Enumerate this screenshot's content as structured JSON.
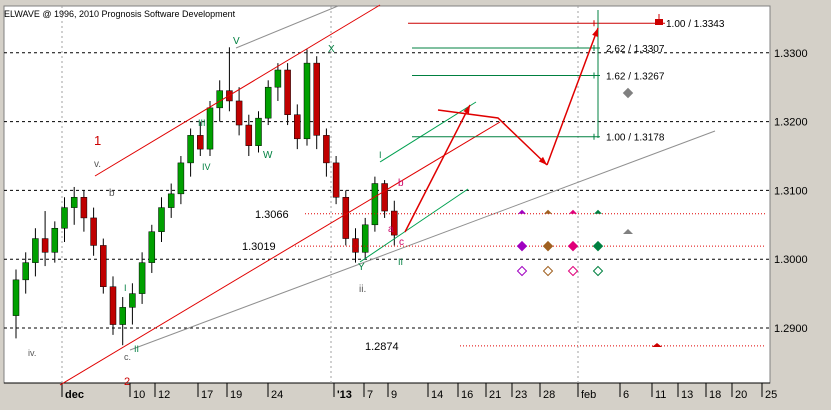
{
  "header": {
    "copyright": "ELWAVE @ 1996, 2010 Prognosis Software Development"
  },
  "chart_data": {
    "type": "candlestick",
    "instrument_hint": "EUR/USD (daily)",
    "ylim": [
      1.282,
      1.3385
    ],
    "y_ticks": [
      "1.2900",
      "1.3000",
      "1.3100",
      "1.3200",
      "1.3300"
    ],
    "x_tick_labels": [
      "dec",
      "10",
      "12",
      "17",
      "19",
      "24",
      "'13",
      "7",
      "9",
      "14",
      "16",
      "21",
      "23",
      "28",
      "feb",
      "6",
      "11",
      "13",
      "18",
      "20",
      "25"
    ],
    "grid": true,
    "candles": [
      [
        1.2918,
        1.2985,
        1.2885,
        1.297
      ],
      [
        1.297,
        1.301,
        1.295,
        1.2995
      ],
      [
        1.2995,
        1.3045,
        1.2975,
        1.303
      ],
      [
        1.303,
        1.307,
        1.299,
        1.301
      ],
      [
        1.301,
        1.3055,
        1.2995,
        1.3045
      ],
      [
        1.3045,
        1.309,
        1.3025,
        1.3075
      ],
      [
        1.3075,
        1.3105,
        1.305,
        1.309
      ],
      [
        1.309,
        1.31,
        1.304,
        1.306
      ],
      [
        1.306,
        1.3075,
        1.3005,
        1.302
      ],
      [
        1.302,
        1.303,
        1.295,
        1.296
      ],
      [
        1.296,
        1.2975,
        1.289,
        1.2905
      ],
      [
        1.2905,
        1.2945,
        1.2875,
        1.293
      ],
      [
        1.293,
        1.2965,
        1.2905,
        1.295
      ],
      [
        1.295,
        1.301,
        1.2935,
        1.2995
      ],
      [
        1.2995,
        1.305,
        1.298,
        1.304
      ],
      [
        1.304,
        1.309,
        1.3025,
        1.3075
      ],
      [
        1.3075,
        1.311,
        1.306,
        1.3095
      ],
      [
        1.3095,
        1.315,
        1.308,
        1.314
      ],
      [
        1.314,
        1.319,
        1.312,
        1.318
      ],
      [
        1.318,
        1.32,
        1.315,
        1.316
      ],
      [
        1.316,
        1.323,
        1.315,
        1.322
      ],
      [
        1.322,
        1.326,
        1.32,
        1.3245
      ],
      [
        1.3245,
        1.3308,
        1.3215,
        1.323
      ],
      [
        1.323,
        1.325,
        1.318,
        1.3195
      ],
      [
        1.3195,
        1.321,
        1.315,
        1.3165
      ],
      [
        1.3165,
        1.3215,
        1.3155,
        1.3205
      ],
      [
        1.3205,
        1.326,
        1.3195,
        1.325
      ],
      [
        1.325,
        1.3285,
        1.323,
        1.3275
      ],
      [
        1.3275,
        1.3285,
        1.3195,
        1.321
      ],
      [
        1.321,
        1.3225,
        1.316,
        1.3175
      ],
      [
        1.3175,
        1.3305,
        1.3165,
        1.3285
      ],
      [
        1.3285,
        1.3295,
        1.316,
        1.318
      ],
      [
        1.318,
        1.319,
        1.312,
        1.314
      ],
      [
        1.314,
        1.315,
        1.308,
        1.309
      ],
      [
        1.309,
        1.31,
        1.302,
        1.303
      ],
      [
        1.303,
        1.3045,
        1.2995,
        1.301
      ],
      [
        1.301,
        1.306,
        1.3,
        1.305
      ],
      [
        1.305,
        1.312,
        1.304,
        1.311
      ],
      [
        1.311,
        1.3115,
        1.306,
        1.307
      ],
      [
        1.307,
        1.3085,
        1.302,
        1.3035
      ]
    ],
    "horizontal_levels": [
      {
        "value": 1.3066,
        "label": "1.3066"
      },
      {
        "value": 1.3019,
        "label": "1.3019"
      },
      {
        "value": 1.2874,
        "label": "1.2874"
      }
    ],
    "fib_targets": [
      {
        "value": 1.3343,
        "label": "1.00 / 1.3343",
        "color": "#cc0000"
      },
      {
        "value": 1.3307,
        "label": "2.62 / 1.3307",
        "color": "#008040"
      },
      {
        "value": 1.3267,
        "label": "1.62 / 1.3267",
        "color": "#008040"
      },
      {
        "value": 1.3178,
        "label": "1.00 / 1.3178",
        "color": "#008040"
      }
    ],
    "wave_labels": [
      {
        "text": "1",
        "color": "#cc0000"
      },
      {
        "text": "2",
        "color": "#cc0000"
      },
      {
        "text": "v.",
        "color": "#555555"
      },
      {
        "text": "iv.",
        "color": "#555555"
      },
      {
        "text": "c.",
        "color": "#555555"
      },
      {
        "text": "ii.",
        "color": "#555555"
      },
      {
        "text": "b",
        "color": "#555555"
      },
      {
        "text": "I",
        "color": "#008040"
      },
      {
        "text": "II",
        "color": "#008040"
      },
      {
        "text": "III",
        "color": "#008040"
      },
      {
        "text": "IV",
        "color": "#008040"
      },
      {
        "text": "V",
        "color": "#008040"
      },
      {
        "text": "W",
        "color": "#008040"
      },
      {
        "text": "X",
        "color": "#008040"
      },
      {
        "text": "Y",
        "color": "#008040"
      },
      {
        "text": "I",
        "color": "#008040"
      },
      {
        "text": "II",
        "color": "#008040"
      },
      {
        "text": "b",
        "color": "#cc0066"
      },
      {
        "text": "a",
        "color": "#cc0066"
      },
      {
        "text": "c",
        "color": "#cc0066"
      }
    ],
    "colors": {
      "background": "#ffffff",
      "frame": "#d4d0c8",
      "bull": "#00a000",
      "bear": "#c00000",
      "channel": "#e00000",
      "green_channel": "#00a050",
      "gray_trend": "#909090",
      "arrow": "#e00000",
      "marker_purple": "#a000c0",
      "marker_brown": "#a06020",
      "marker_pink": "#e0007a",
      "marker_green": "#008040",
      "marker_gray": "#808080"
    }
  }
}
